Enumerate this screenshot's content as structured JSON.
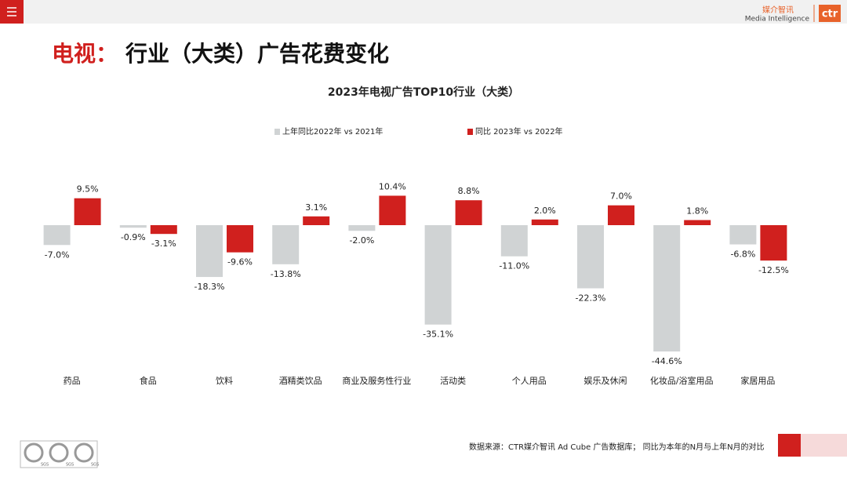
{
  "logo": {
    "cn": "媒介智讯",
    "en": "Media Intelligence",
    "mark": "ctr"
  },
  "slide_title": {
    "prefix": "电视：",
    "main": "行业（大类）广告花费变化"
  },
  "chart_data": {
    "type": "bar",
    "title": "2023年电视广告TOP10行业（大类）",
    "categories": [
      "药品",
      "食品",
      "饮料",
      "酒精类饮品",
      "商业及服务性行业",
      "活动类",
      "个人用品",
      "娱乐及休闲",
      "化妆品/浴室用品",
      "家居用品"
    ],
    "series": [
      {
        "name": "上年同比2022年 vs 2021年",
        "color": "#d0d3d4",
        "values": [
          -7.0,
          -0.9,
          -18.3,
          -13.8,
          -2.0,
          -35.1,
          -11.0,
          -22.3,
          -44.6,
          -6.8
        ],
        "value_labels": [
          "-7.0%",
          "-0.9%",
          "-18.3%",
          "-13.8%",
          "-2.0%",
          "-35.1%",
          "-11.0%",
          "-22.3%",
          "-44.6%",
          "-6.8%"
        ]
      },
      {
        "name": "同比 2023年 vs 2022年",
        "color": "#d0201e",
        "values": [
          9.5,
          -3.1,
          -9.6,
          3.1,
          10.4,
          8.8,
          2.0,
          7.0,
          1.8,
          -12.5
        ],
        "value_labels": [
          "9.5%",
          "-3.1%",
          "-9.6%",
          "3.1%",
          "10.4%",
          "8.8%",
          "2.0%",
          "7.0%",
          "1.8%",
          "-12.5%"
        ]
      }
    ],
    "legend": "top"
  },
  "footer": {
    "source": "数据来源：CTR媒介智讯 Ad Cube 广告数据库； 同比为本年的N月与上年N月的对比",
    "badges": [
      "SGS",
      "SGS",
      "SGS"
    ]
  }
}
